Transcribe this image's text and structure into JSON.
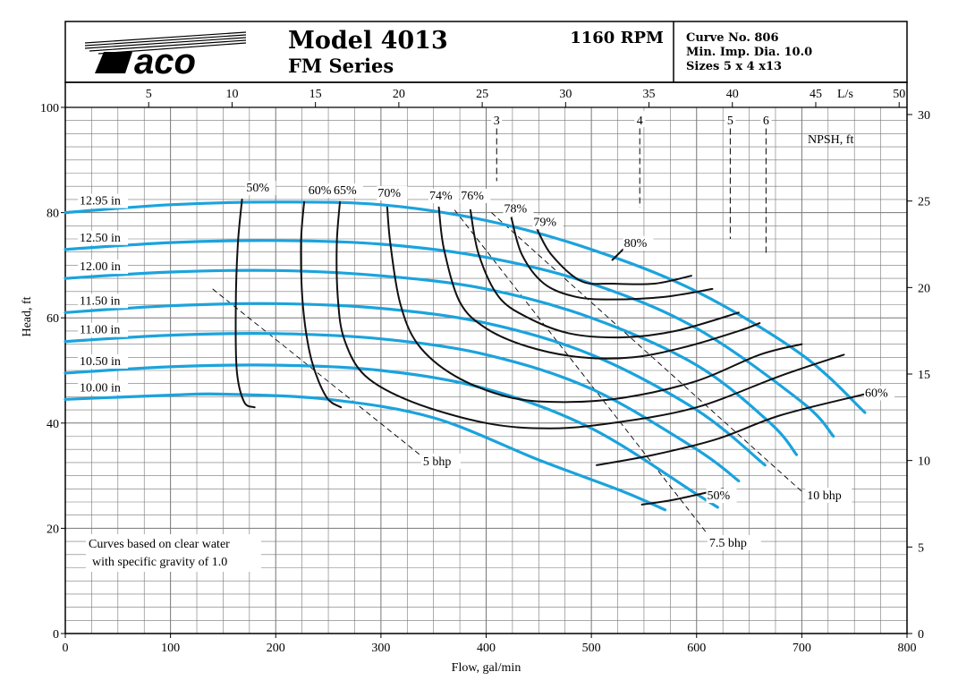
{
  "header": {
    "model": "Model 4013",
    "series": "FM Series",
    "rpm": "1160 RPM",
    "curve_no": "Curve No. 806",
    "min_imp": "Min. Imp. Dia. 10.0",
    "sizes": "Sizes 5 x 4 x13",
    "logo_text": "aco"
  },
  "chart_data": {
    "type": "line",
    "xlabel": "Flow, gal/min",
    "ylabel": "Head, ft",
    "top_axis_label": "L/s",
    "right_axis_label": "NPSH, ft",
    "xlim": [
      0,
      800
    ],
    "ylim": [
      0,
      100
    ],
    "x_ticks": [
      "0",
      "100",
      "200",
      "300",
      "400",
      "500",
      "600",
      "700",
      "800"
    ],
    "y_ticks": [
      "0",
      "20",
      "40",
      "60",
      "80",
      "100"
    ],
    "top_ticks": [
      "5",
      "10",
      "15",
      "20",
      "25",
      "30",
      "35",
      "40",
      "45",
      "50"
    ],
    "right_ticks": [
      "0",
      "5",
      "10",
      "15",
      "20",
      "25",
      "30"
    ],
    "impeller_curves": [
      {
        "label": "12.95 in",
        "points": [
          [
            0,
            80
          ],
          [
            100,
            81.5
          ],
          [
            200,
            82
          ],
          [
            300,
            81.5
          ],
          [
            400,
            78.5
          ],
          [
            500,
            73
          ],
          [
            600,
            65
          ],
          [
            700,
            53
          ],
          [
            760,
            42
          ]
        ]
      },
      {
        "label": "12.50 in",
        "points": [
          [
            0,
            73
          ],
          [
            100,
            74.3
          ],
          [
            200,
            74.7
          ],
          [
            300,
            74
          ],
          [
            400,
            71.5
          ],
          [
            500,
            66.5
          ],
          [
            600,
            58
          ],
          [
            700,
            44
          ],
          [
            730,
            37.5
          ]
        ]
      },
      {
        "label": "12.00 in",
        "points": [
          [
            0,
            67.5
          ],
          [
            100,
            68.7
          ],
          [
            200,
            69
          ],
          [
            300,
            68
          ],
          [
            400,
            65.5
          ],
          [
            500,
            60
          ],
          [
            600,
            51
          ],
          [
            670,
            40
          ],
          [
            695,
            34
          ]
        ]
      },
      {
        "label": "11.50 in",
        "points": [
          [
            0,
            61
          ],
          [
            100,
            62.3
          ],
          [
            200,
            62.7
          ],
          [
            300,
            61.8
          ],
          [
            400,
            59
          ],
          [
            500,
            53
          ],
          [
            600,
            42.5
          ],
          [
            665,
            32
          ]
        ]
      },
      {
        "label": "11.00 in",
        "points": [
          [
            0,
            55.5
          ],
          [
            100,
            56.7
          ],
          [
            200,
            57
          ],
          [
            300,
            56
          ],
          [
            400,
            53
          ],
          [
            500,
            46.5
          ],
          [
            600,
            35
          ],
          [
            640,
            29
          ]
        ]
      },
      {
        "label": "10.50 in",
        "points": [
          [
            0,
            49.5
          ],
          [
            100,
            50.7
          ],
          [
            200,
            51
          ],
          [
            300,
            50
          ],
          [
            400,
            46.5
          ],
          [
            500,
            39
          ],
          [
            600,
            26.5
          ],
          [
            620,
            24
          ]
        ]
      },
      {
        "label": "10.00 in",
        "points": [
          [
            0,
            44.5
          ],
          [
            100,
            45.3
          ],
          [
            150,
            45.5
          ],
          [
            250,
            44.5
          ],
          [
            350,
            41
          ],
          [
            450,
            33
          ],
          [
            530,
            27
          ],
          [
            570,
            23.5
          ]
        ]
      }
    ],
    "efficiency_curves": [
      {
        "label": "50%",
        "label_at": [
          172,
          84
        ],
        "points": [
          [
            168,
            82.5
          ],
          [
            164,
            74
          ],
          [
            162,
            62
          ],
          [
            163,
            50
          ],
          [
            170,
            44
          ],
          [
            180,
            43
          ]
        ]
      },
      {
        "label": "50%",
        "label_at": [
          610,
          25.5
        ],
        "points": [
          [
            548,
            24.5
          ],
          [
            580,
            25.5
          ],
          [
            625,
            27.5
          ]
        ]
      },
      {
        "label": "60%",
        "label_at": [
          231,
          83.5
        ],
        "points": [
          [
            227,
            82
          ],
          [
            224,
            74
          ],
          [
            226,
            62
          ],
          [
            234,
            52
          ],
          [
            248,
            45
          ],
          [
            262,
            43
          ]
        ]
      },
      {
        "label": "60%",
        "label_at": [
          760,
          45
        ],
        "points": [
          [
            505,
            32
          ],
          [
            560,
            34
          ],
          [
            620,
            37
          ],
          [
            680,
            41.5
          ],
          [
            760,
            45.5
          ]
        ]
      },
      {
        "label": "65%",
        "label_at": [
          255,
          83.5
        ],
        "points": [
          [
            261,
            82
          ],
          [
            258,
            74
          ],
          [
            259,
            64
          ],
          [
            265,
            56
          ],
          [
            285,
            49
          ],
          [
            330,
            44
          ],
          [
            400,
            40
          ],
          [
            460,
            39
          ],
          [
            520,
            40
          ],
          [
            600,
            43
          ],
          [
            680,
            49
          ],
          [
            740,
            53
          ]
        ]
      },
      {
        "label": "70%",
        "label_at": [
          297,
          83
        ],
        "points": [
          [
            306,
            81
          ],
          [
            309,
            74
          ],
          [
            318,
            63
          ],
          [
            335,
            55
          ],
          [
            370,
            49
          ],
          [
            420,
            45
          ],
          [
            470,
            44
          ],
          [
            530,
            44.8
          ],
          [
            600,
            48
          ],
          [
            660,
            53
          ],
          [
            700,
            55
          ]
        ]
      },
      {
        "label": "74%",
        "label_at": [
          346,
          82.5
        ],
        "points": [
          [
            355,
            81
          ],
          [
            360,
            73
          ],
          [
            375,
            63
          ],
          [
            400,
            58
          ],
          [
            440,
            54.5
          ],
          [
            490,
            52.5
          ],
          [
            540,
            52.5
          ],
          [
            590,
            54.5
          ],
          [
            640,
            57.5
          ],
          [
            660,
            59
          ]
        ]
      },
      {
        "label": "76%",
        "label_at": [
          376,
          82.5
        ],
        "points": [
          [
            385,
            80.5
          ],
          [
            393,
            72
          ],
          [
            412,
            64
          ],
          [
            440,
            60
          ],
          [
            480,
            57
          ],
          [
            530,
            56.3
          ],
          [
            580,
            57.5
          ],
          [
            640,
            61
          ]
        ]
      },
      {
        "label": "78%",
        "label_at": [
          417,
          80
        ],
        "points": [
          [
            424,
            79
          ],
          [
            434,
            72
          ],
          [
            455,
            66.5
          ],
          [
            485,
            64
          ],
          [
            520,
            63.5
          ],
          [
            570,
            64
          ],
          [
            615,
            65.5
          ]
        ]
      },
      {
        "label": "79%",
        "label_at": [
          445,
          77.5
        ],
        "points": [
          [
            448,
            77
          ],
          [
            462,
            72
          ],
          [
            490,
            67
          ],
          [
            520,
            66.5
          ],
          [
            560,
            66.5
          ],
          [
            595,
            68
          ]
        ]
      },
      {
        "label": "80%",
        "label_at": [
          531,
          73.5
        ],
        "points": [
          [
            520,
            71
          ],
          [
            530,
            73
          ]
        ]
      }
    ],
    "bhp_lines": [
      {
        "label": "5 bhp",
        "label_at": [
          340,
          32
        ],
        "points": [
          [
            140,
            65.5
          ],
          [
            340,
            33.5
          ]
        ]
      },
      {
        "label": "7.5 bhp",
        "label_at": [
          612,
          16.5
        ],
        "points": [
          [
            370,
            80.5
          ],
          [
            610,
            19
          ]
        ]
      },
      {
        "label": "10 bhp",
        "label_at": [
          705,
          25.5
        ],
        "points": [
          [
            405,
            80
          ],
          [
            700,
            27
          ]
        ]
      }
    ],
    "npsh_markers": [
      {
        "label": "3",
        "x": 410,
        "y_top": 96,
        "y_bottom": 86
      },
      {
        "label": "4",
        "x": 546,
        "y_top": 96,
        "y_bottom": 81
      },
      {
        "label": "5",
        "x": 632,
        "y_top": 96,
        "y_bottom": 75
      },
      {
        "label": "6",
        "x": 666,
        "y_top": 96,
        "y_bottom": 72
      }
    ],
    "annotation": [
      "Curves based on clear water",
      "with specific gravity of 1.0"
    ],
    "colors": {
      "impeller": "#1ba3dd",
      "efficiency": "#111111",
      "grid": "#777777"
    }
  }
}
